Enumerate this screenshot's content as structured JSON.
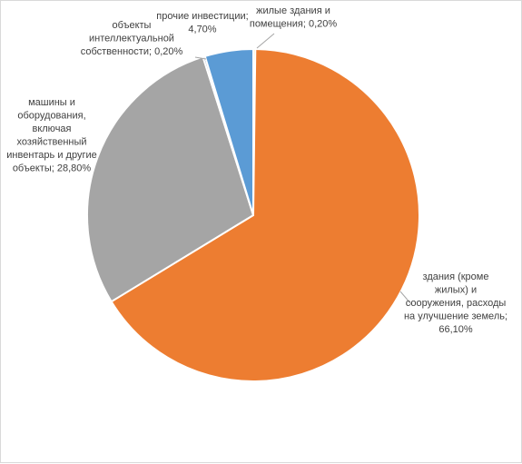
{
  "chart_data": {
    "type": "pie",
    "title": "",
    "slices": [
      {
        "name": "жилые здания и помещения",
        "value": 0.2,
        "value_label": "0,20%",
        "color": "#FFC000",
        "label_lines": [
          "жилые здания и",
          "помещения; 0,20%"
        ]
      },
      {
        "name": "здания (кроме жилых) и сооружения, расходы на улучшение земель",
        "value": 66.1,
        "value_label": "66,10%",
        "color": "#ED7D31",
        "label_lines": [
          "здания (кроме",
          "жилых) и",
          "сооружения, расходы",
          "на улучшение земель;",
          "66,10%"
        ]
      },
      {
        "name": "машины и оборудования, включая хозяйственный инвентарь и другие объекты",
        "value": 28.8,
        "value_label": "28,80%",
        "color": "#A5A5A5",
        "label_lines": [
          "машины и",
          "оборудования,",
          "включая",
          "хозяйственный",
          "инвентарь и другие",
          "объекты; 28,80%"
        ]
      },
      {
        "name": "объекты интеллектуальной собственности",
        "value": 0.2,
        "value_label": "0,20%",
        "color": "#264478",
        "label_lines": [
          "объекты",
          "интеллектуальной",
          "собственности; 0,20%"
        ]
      },
      {
        "name": "прочие инвестиции",
        "value": 4.7,
        "value_label": "4,70%",
        "color": "#5B9BD5",
        "label_lines": [
          "прочие инвестиции;",
          "4,70%"
        ]
      }
    ]
  }
}
